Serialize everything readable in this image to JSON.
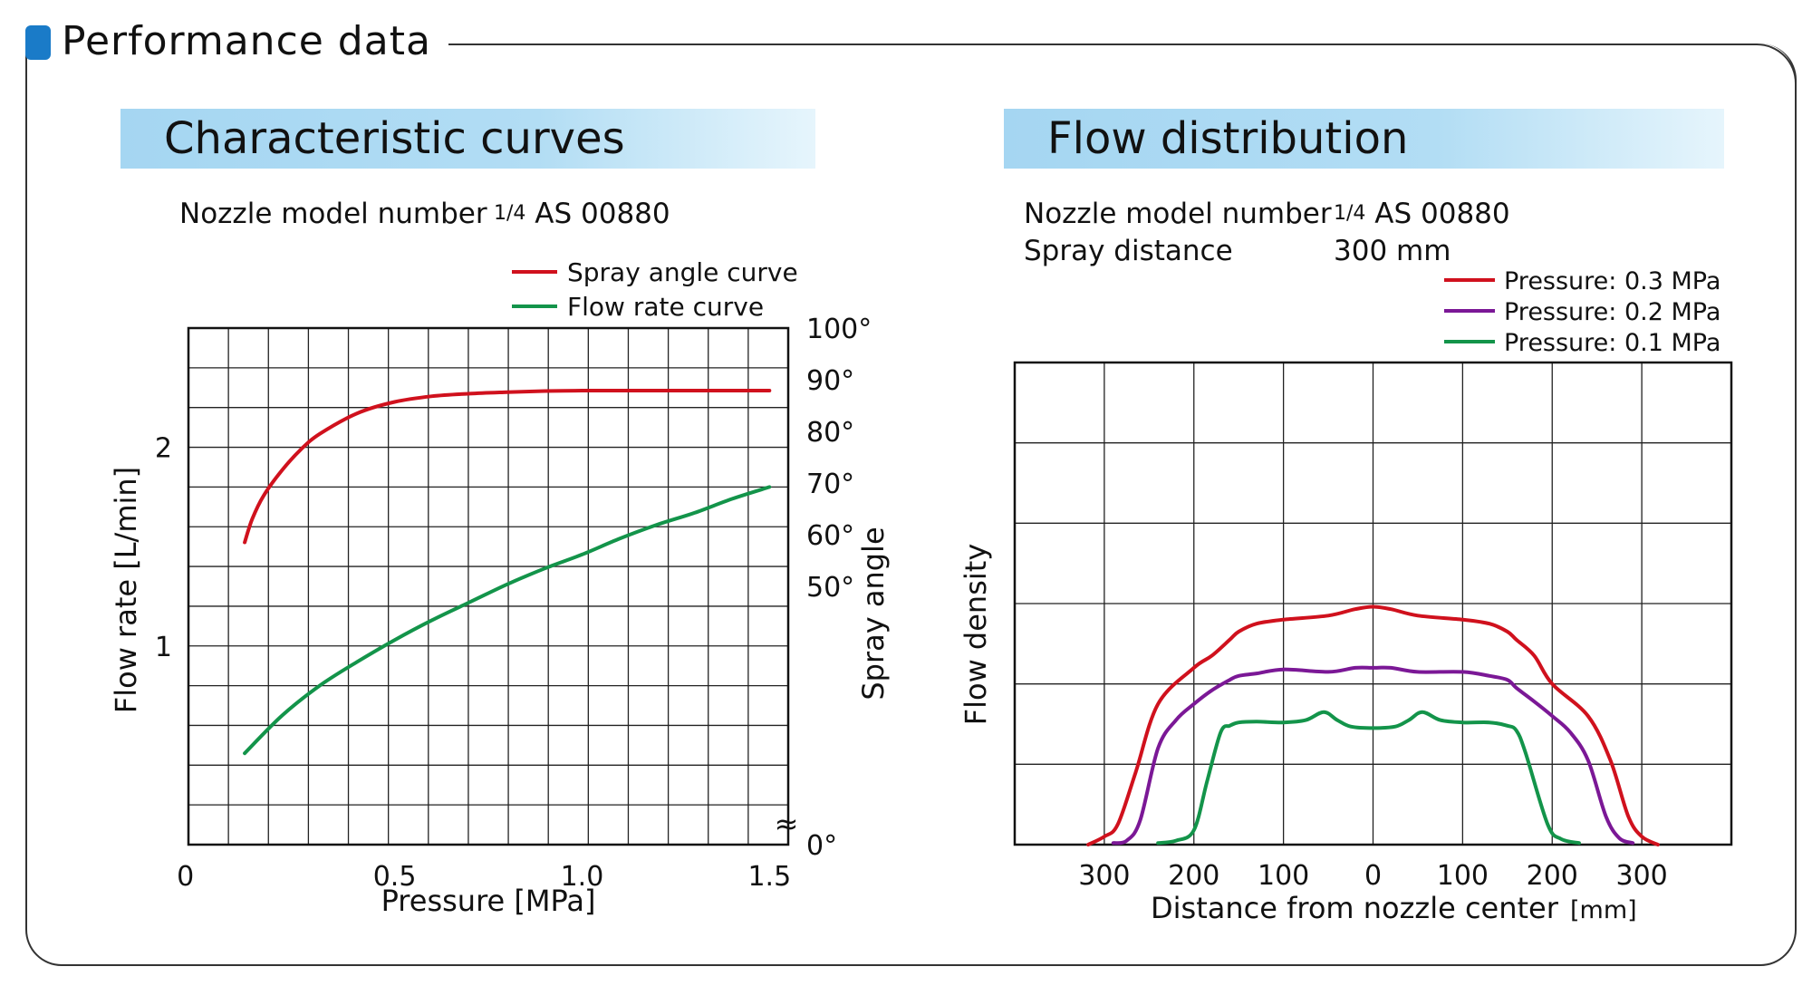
{
  "page": {
    "section_title": "Performance data",
    "colors": {
      "accent": "#1a7bc8",
      "band": "#a5d6f2",
      "red": "#d0111d",
      "green": "#13944a",
      "purple": "#7b1896"
    }
  },
  "left": {
    "band_title": "Characteristic curves",
    "model_label": "Nozzle model number",
    "model_frac": "1/4",
    "model_value": "AS 00880"
  },
  "right": {
    "band_title": "Flow distribution",
    "model_label": "Nozzle model number",
    "model_frac": "1/4",
    "model_value": "AS 00880",
    "distance_label": "Spray distance",
    "distance_value": "300 mm"
  },
  "chart_data": [
    {
      "type": "line",
      "xlabel": "Pressure [MPa]",
      "ylabel": "Flow rate [L/min]",
      "y2label": "Spray angle",
      "xlim": [
        -0.05,
        1.55
      ],
      "ylim": [
        0,
        2.6
      ],
      "y2lim": [
        0,
        100
      ],
      "x_ticks": [
        {
          "v": 0,
          "label": "0"
        },
        {
          "v": 0.5,
          "label": "0.5"
        },
        {
          "v": 1.0,
          "label": "1.0"
        },
        {
          "v": 1.5,
          "label": "1.5"
        }
      ],
      "y_ticks": [
        {
          "v": 1,
          "label": "1"
        },
        {
          "v": 2,
          "label": "2"
        }
      ],
      "y2_ticks": [
        {
          "v": 100,
          "label": "100°"
        },
        {
          "v": 90,
          "label": "90°"
        },
        {
          "v": 80,
          "label": "80°"
        },
        {
          "v": 70,
          "label": "70°"
        },
        {
          "v": 60,
          "label": "60°"
        },
        {
          "v": 50,
          "label": "50°"
        },
        {
          "v": 0,
          "label": "0°"
        }
      ],
      "axis_break": "≈",
      "grid": true,
      "legend_position": "top-right",
      "series": [
        {
          "name": "Spray angle curve",
          "axis": "y2",
          "color": "#d0111d",
          "x": [
            0.1,
            0.12,
            0.15,
            0.2,
            0.25,
            0.3,
            0.4,
            0.5,
            0.6,
            0.7,
            0.8,
            0.9,
            1.0,
            1.1,
            1.2,
            1.3,
            1.4,
            1.5
          ],
          "y": [
            58.5,
            63,
            67.5,
            72.5,
            76.5,
            79.5,
            83.5,
            85.7,
            86.8,
            87.3,
            87.6,
            87.8,
            87.9,
            87.9,
            87.9,
            87.9,
            87.9,
            87.9
          ]
        },
        {
          "name": "Flow rate curve",
          "axis": "y",
          "color": "#13944a",
          "x": [
            0.1,
            0.2,
            0.3,
            0.4,
            0.5,
            0.6,
            0.7,
            0.8,
            0.9,
            1.0,
            1.1,
            1.2,
            1.3,
            1.4,
            1.5
          ],
          "y": [
            0.46,
            0.65,
            0.8,
            0.92,
            1.03,
            1.13,
            1.22,
            1.31,
            1.39,
            1.46,
            1.54,
            1.61,
            1.67,
            1.74,
            1.8
          ]
        }
      ]
    },
    {
      "type": "line",
      "xlabel": "Distance from nozzle center",
      "xlabel_unit": "[mm]",
      "ylabel": "Flow density",
      "xlim": [
        -400,
        400
      ],
      "ylim": [
        0,
        6
      ],
      "x_ticks": [
        {
          "v": -300,
          "label": "300"
        },
        {
          "v": -200,
          "label": "200"
        },
        {
          "v": -100,
          "label": "100"
        },
        {
          "v": 0,
          "label": "0"
        },
        {
          "v": 100,
          "label": "100"
        },
        {
          "v": 200,
          "label": "200"
        },
        {
          "v": 300,
          "label": "300"
        }
      ],
      "grid": true,
      "legend_position": "top-right",
      "series": [
        {
          "name": "Pressure: 0.3 MPa",
          "color": "#d0111d",
          "x": [
            -318,
            -300,
            -285,
            -265,
            -240,
            -200,
            -180,
            -160,
            -150,
            -130,
            -100,
            -50,
            -20,
            0,
            20,
            50,
            100,
            130,
            150,
            160,
            180,
            200,
            240,
            265,
            285,
            300,
            318
          ],
          "y": [
            0,
            0.1,
            0.25,
            0.9,
            1.75,
            2.2,
            2.35,
            2.55,
            2.65,
            2.75,
            2.8,
            2.85,
            2.93,
            2.96,
            2.93,
            2.85,
            2.8,
            2.75,
            2.65,
            2.55,
            2.35,
            2.0,
            1.6,
            1.05,
            0.35,
            0.1,
            0
          ]
        },
        {
          "name": "Pressure: 0.2 MPa",
          "color": "#7b1896",
          "x": [
            -290,
            -275,
            -260,
            -240,
            -220,
            -200,
            -180,
            -160,
            -150,
            -130,
            -100,
            -50,
            -20,
            0,
            20,
            50,
            100,
            130,
            150,
            160,
            180,
            200,
            220,
            240,
            260,
            275,
            290
          ],
          "y": [
            0.02,
            0.05,
            0.3,
            1.2,
            1.55,
            1.75,
            1.92,
            2.05,
            2.1,
            2.13,
            2.18,
            2.15,
            2.2,
            2.2,
            2.2,
            2.15,
            2.15,
            2.1,
            2.05,
            1.95,
            1.78,
            1.6,
            1.4,
            1.05,
            0.35,
            0.08,
            0.02
          ]
        },
        {
          "name": "Pressure: 0.1 MPa",
          "color": "#13944a",
          "x": [
            -240,
            -220,
            -200,
            -185,
            -170,
            -160,
            -150,
            -130,
            -100,
            -75,
            -55,
            -40,
            -25,
            0,
            25,
            40,
            55,
            75,
            100,
            130,
            150,
            160,
            170,
            195,
            210,
            230
          ],
          "y": [
            0.02,
            0.05,
            0.18,
            0.8,
            1.4,
            1.48,
            1.52,
            1.53,
            1.52,
            1.55,
            1.65,
            1.55,
            1.47,
            1.45,
            1.47,
            1.55,
            1.65,
            1.55,
            1.52,
            1.52,
            1.48,
            1.42,
            1.15,
            0.25,
            0.07,
            0.02
          ]
        }
      ]
    }
  ]
}
